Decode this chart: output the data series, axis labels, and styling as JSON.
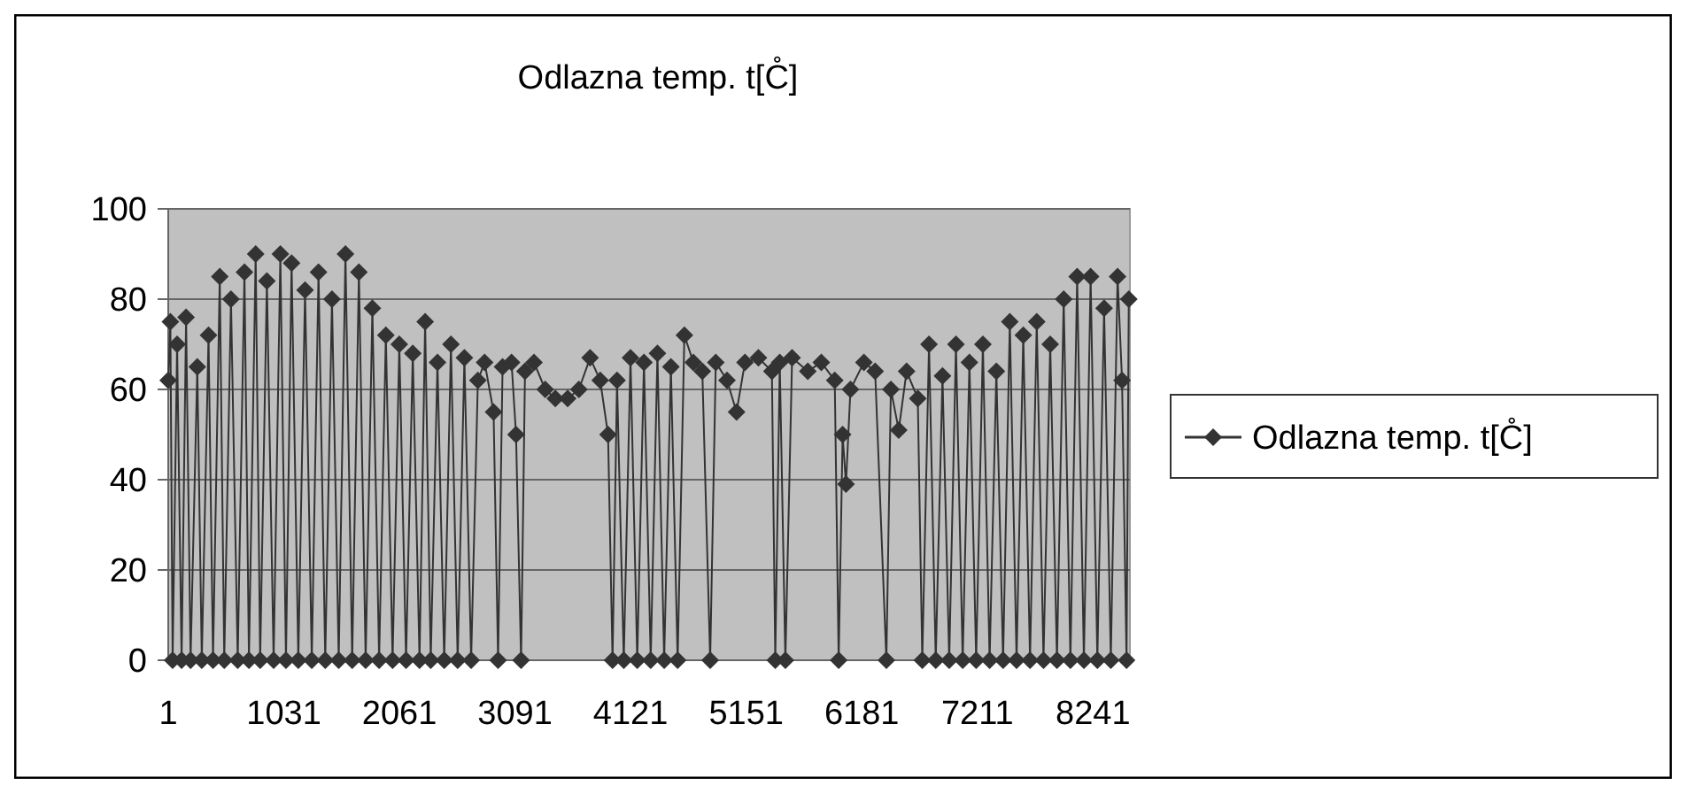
{
  "chart_data": {
    "type": "line",
    "title": "Odlazna temp. t[C̊]",
    "xlim": [
      1,
      8570
    ],
    "xticks": [
      1,
      1031,
      2061,
      3091,
      4121,
      5151,
      6181,
      7211,
      8241
    ],
    "ylim": [
      0,
      100
    ],
    "yticks": [
      0,
      20,
      40,
      60,
      80,
      100
    ],
    "grid": "y",
    "legend": "right",
    "marker": "diamond",
    "line_style": "solid",
    "series": [
      {
        "name": "Odlazna temp. t[C̊]",
        "color": "#333333",
        "x": [
          1,
          20,
          40,
          80,
          120,
          160,
          200,
          260,
          300,
          360,
          400,
          460,
          500,
          560,
          620,
          680,
          720,
          780,
          820,
          880,
          940,
          1000,
          1050,
          1100,
          1160,
          1220,
          1280,
          1340,
          1400,
          1460,
          1520,
          1580,
          1640,
          1700,
          1760,
          1820,
          1880,
          1940,
          2000,
          2060,
          2120,
          2180,
          2240,
          2290,
          2340,
          2400,
          2460,
          2520,
          2580,
          2640,
          2700,
          2760,
          2820,
          2900,
          2940,
          2980,
          3060,
          3100,
          3145,
          3180,
          3260,
          3360,
          3450,
          3560,
          3660,
          3760,
          3850,
          3920,
          3960,
          4000,
          4060,
          4120,
          4180,
          4240,
          4300,
          4360,
          4420,
          4480,
          4540,
          4600,
          4680,
          4760,
          4830,
          4880,
          4980,
          5065,
          5140,
          5260,
          5380,
          5410,
          5450,
          5500,
          5560,
          5700,
          5820,
          5940,
          5975,
          6010,
          6040,
          6080,
          6200,
          6300,
          6400,
          6440,
          6510,
          6580,
          6680,
          6720,
          6780,
          6840,
          6900,
          6960,
          7020,
          7080,
          7140,
          7200,
          7260,
          7320,
          7380,
          7440,
          7500,
          7560,
          7620,
          7680,
          7740,
          7800,
          7860,
          7920,
          7980,
          8040,
          8100,
          8160,
          8220,
          8280,
          8340,
          8400,
          8460,
          8500,
          8540,
          8560
        ],
        "values": [
          62,
          75,
          0,
          70,
          0,
          76,
          0,
          65,
          0,
          72,
          0,
          85,
          0,
          80,
          0,
          86,
          0,
          90,
          0,
          84,
          0,
          90,
          0,
          88,
          0,
          82,
          0,
          86,
          0,
          80,
          0,
          90,
          0,
          86,
          0,
          78,
          0,
          72,
          0,
          70,
          0,
          68,
          0,
          75,
          0,
          66,
          0,
          70,
          0,
          67,
          0,
          62,
          66,
          55,
          0,
          65,
          66,
          50,
          0,
          64,
          66,
          60,
          58,
          58,
          60,
          67,
          62,
          50,
          0,
          62,
          0,
          67,
          0,
          66,
          0,
          68,
          0,
          65,
          0,
          72,
          66,
          64,
          0,
          66,
          62,
          55,
          66,
          67,
          64,
          0,
          66,
          0,
          67,
          64,
          66,
          62,
          0,
          50,
          39,
          60,
          66,
          64,
          0,
          60,
          51,
          64,
          58,
          0,
          70,
          0,
          63,
          0,
          70,
          0,
          66,
          0,
          70,
          0,
          64,
          0,
          75,
          0,
          72,
          0,
          75,
          0,
          70,
          0,
          80,
          0,
          85,
          0,
          85,
          0,
          78,
          0,
          85,
          62,
          0,
          80
        ]
      }
    ]
  }
}
